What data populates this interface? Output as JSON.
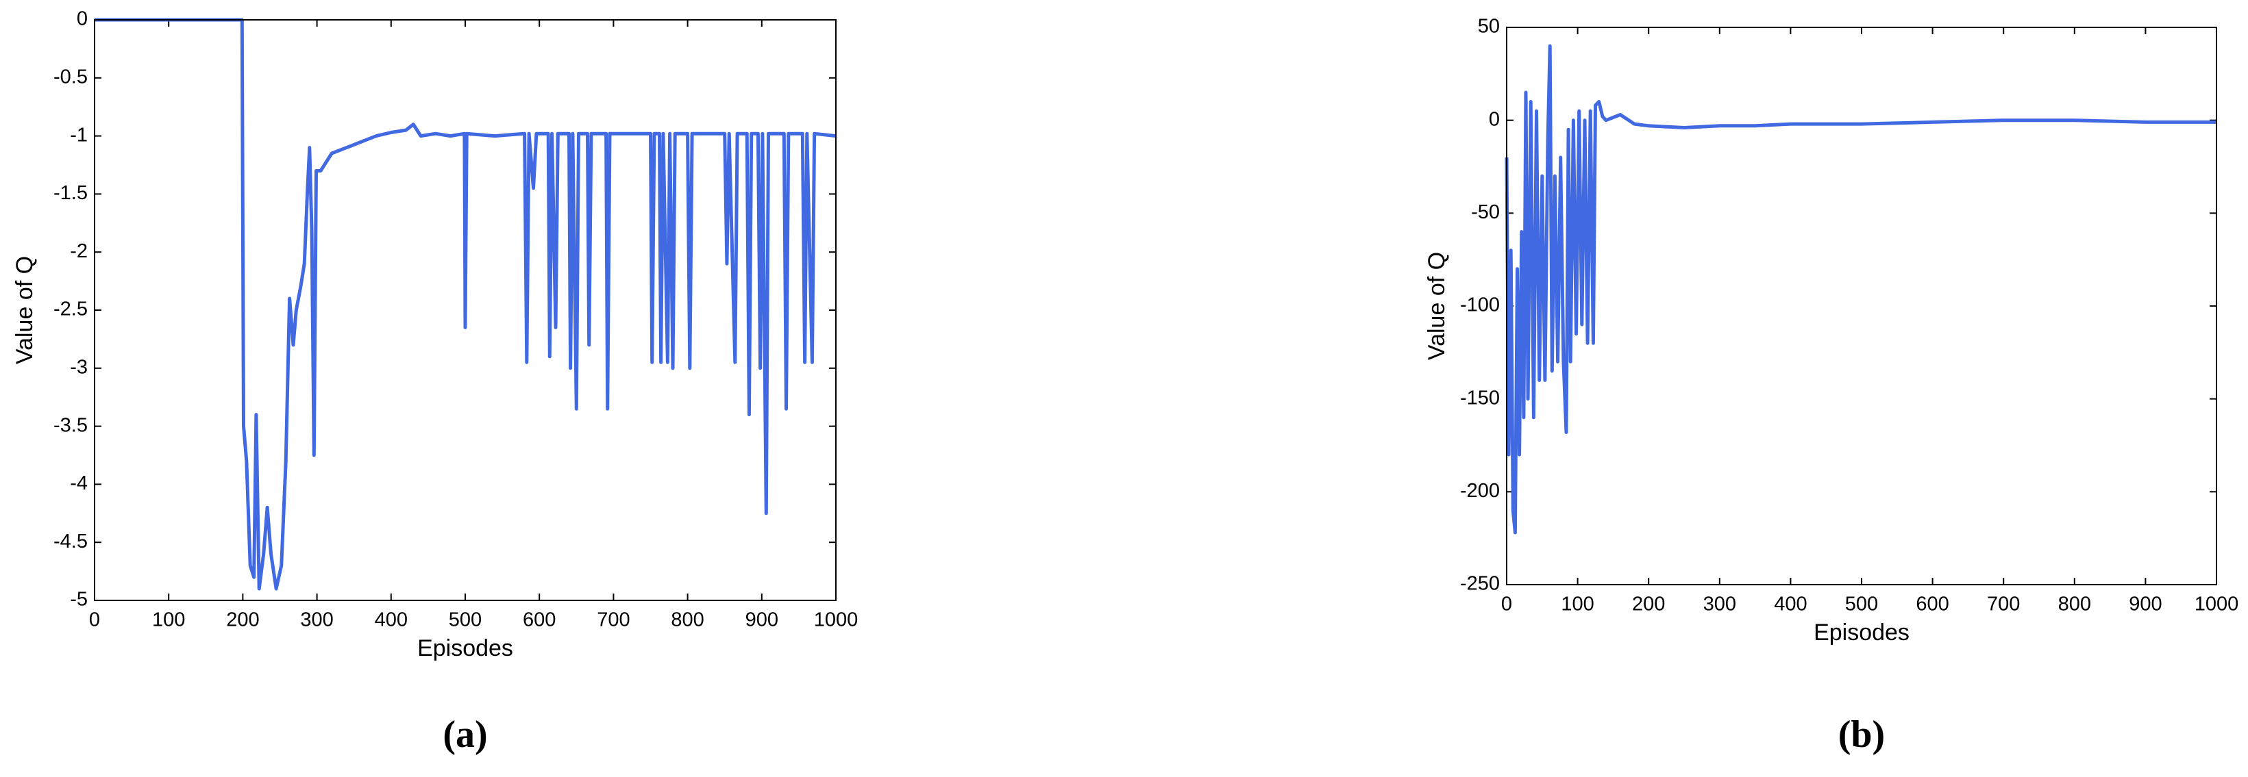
{
  "chart_data": [
    {
      "type": "line",
      "caption": "(a)",
      "xlabel": "Episodes",
      "ylabel": "Value of Q",
      "x": [
        0,
        199,
        201,
        205,
        210,
        215,
        218,
        222,
        228,
        233,
        238,
        245,
        252,
        258,
        263,
        268,
        272,
        278,
        283,
        287,
        290,
        293,
        296,
        299,
        305,
        320,
        340,
        360,
        380,
        400,
        420,
        430,
        440,
        460,
        480,
        499,
        500,
        502,
        540,
        580,
        583,
        586,
        592,
        596,
        612,
        614,
        617,
        622,
        625,
        640,
        642,
        645,
        650,
        653,
        665,
        667,
        670,
        690,
        692,
        695,
        750,
        752,
        755,
        762,
        764,
        767,
        773,
        776,
        780,
        783,
        800,
        803,
        806,
        850,
        853,
        856,
        864,
        867,
        880,
        883,
        886,
        895,
        898,
        901,
        906,
        909,
        930,
        933,
        936,
        955,
        958,
        961,
        968,
        971,
        1000
      ],
      "series": [
        {
          "name": "Q",
          "color": "#4169e1",
          "values": [
            0,
            0,
            -3.5,
            -3.8,
            -4.7,
            -4.8,
            -3.4,
            -4.9,
            -4.6,
            -4.2,
            -4.6,
            -4.9,
            -4.7,
            -3.8,
            -2.4,
            -2.8,
            -2.5,
            -2.3,
            -2.1,
            -1.5,
            -1.1,
            -1.8,
            -3.75,
            -1.3,
            -1.3,
            -1.15,
            -1.1,
            -1.05,
            -1.0,
            -0.97,
            -0.95,
            -0.9,
            -1.0,
            -0.98,
            -1.0,
            -0.98,
            -2.65,
            -0.98,
            -1.0,
            -0.98,
            -2.95,
            -0.98,
            -1.45,
            -0.98,
            -0.98,
            -2.9,
            -0.98,
            -2.65,
            -0.98,
            -0.98,
            -3.0,
            -0.98,
            -3.35,
            -0.98,
            -0.98,
            -2.8,
            -0.98,
            -0.98,
            -3.35,
            -0.98,
            -0.98,
            -2.95,
            -0.98,
            -0.98,
            -2.95,
            -0.98,
            -2.95,
            -0.98,
            -3.0,
            -0.98,
            -0.98,
            -3.0,
            -0.98,
            -0.98,
            -2.1,
            -0.98,
            -2.95,
            -0.98,
            -0.98,
            -3.4,
            -0.98,
            -0.98,
            -3.0,
            -0.98,
            -4.25,
            -0.98,
            -0.98,
            -3.35,
            -0.98,
            -0.98,
            -2.95,
            -0.98,
            -2.95,
            -0.98,
            -1.0
          ]
        }
      ],
      "xlim": [
        0,
        1000
      ],
      "xticks": [
        0,
        100,
        200,
        300,
        400,
        500,
        600,
        700,
        800,
        900,
        1000
      ],
      "ylim": [
        -5,
        0
      ],
      "yticks": [
        0,
        -0.5,
        -1,
        -1.5,
        -2,
        -2.5,
        -3,
        -3.5,
        -4,
        -4.5,
        -5
      ]
    },
    {
      "type": "line",
      "caption": "(b)",
      "xlabel": "Episodes",
      "ylabel": "Value of Q",
      "x": [
        0,
        3,
        6,
        9,
        12,
        15,
        18,
        21,
        24,
        27,
        30,
        34,
        38,
        42,
        46,
        50,
        54,
        58,
        61,
        64,
        68,
        72,
        76,
        80,
        84,
        87,
        90,
        94,
        98,
        102,
        106,
        110,
        114,
        118,
        122,
        125,
        130,
        135,
        140,
        160,
        180,
        200,
        250,
        300,
        350,
        400,
        500,
        600,
        700,
        800,
        900,
        1000
      ],
      "series": [
        {
          "name": "Q",
          "color": "#4169e1",
          "values": [
            -20,
            -180,
            -70,
            -210,
            -222,
            -80,
            -180,
            -60,
            -160,
            15,
            -150,
            10,
            -160,
            5,
            -140,
            -30,
            -140,
            -10,
            40,
            -135,
            -30,
            -130,
            -20,
            -130,
            -168,
            -5,
            -130,
            0,
            -115,
            5,
            -110,
            0,
            -120,
            5,
            -120,
            8,
            10,
            2,
            0,
            3,
            -2,
            -3,
            -4,
            -3,
            -3,
            -2,
            -2,
            -1,
            0,
            0,
            -1,
            -1
          ]
        }
      ],
      "xlim": [
        0,
        1000
      ],
      "xticks": [
        0,
        100,
        200,
        300,
        400,
        500,
        600,
        700,
        800,
        900,
        1000
      ],
      "ylim": [
        -250,
        50
      ],
      "yticks": [
        50,
        0,
        -50,
        -100,
        -150,
        -200,
        -250
      ]
    }
  ]
}
